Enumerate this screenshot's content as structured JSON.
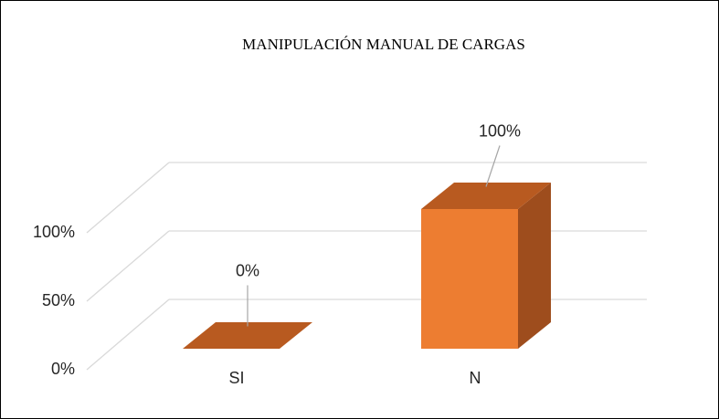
{
  "chart_data": {
    "type": "bar3d",
    "title": "MANIPULACIÓN MANUAL DE CARGAS",
    "categories": [
      "SI",
      "N"
    ],
    "values": [
      0,
      100
    ],
    "value_labels": [
      "0%",
      "100%"
    ],
    "color": "#ed7d31",
    "ylim": [
      0,
      100
    ],
    "yticks": [
      {
        "value": 0,
        "label": "0%"
      },
      {
        "value": 50,
        "label": "50%"
      },
      {
        "value": 100,
        "label": "100%"
      }
    ],
    "grid": true
  }
}
